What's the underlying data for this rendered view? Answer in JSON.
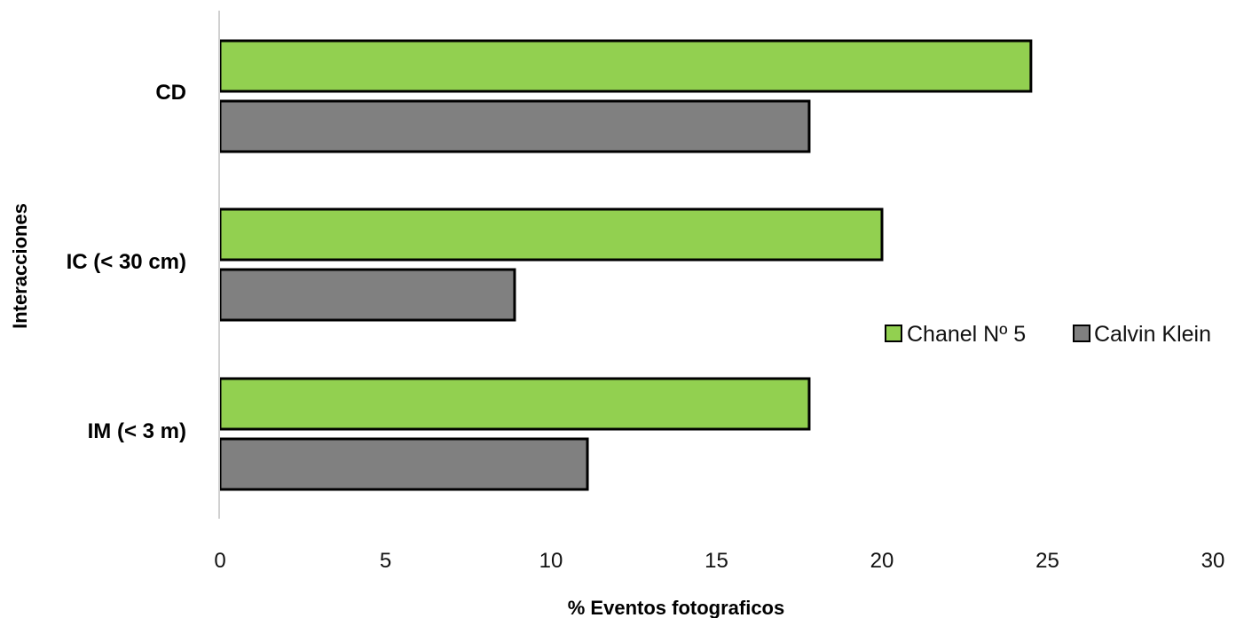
{
  "chart_data": {
    "type": "bar",
    "orientation": "horizontal",
    "categories": [
      "CD",
      "IC (< 30 cm)",
      "IM (< 3 m)"
    ],
    "series": [
      {
        "name": "Chanel Nº 5",
        "color": "#92d050",
        "values": [
          24.5,
          20,
          17.8
        ]
      },
      {
        "name": "Calvin Klein",
        "color": "#808080",
        "values": [
          17.8,
          8.9,
          11.1
        ]
      }
    ],
    "xlabel": "% Eventos fotograficos",
    "ylabel": "Interacciones",
    "xlim": [
      0,
      30
    ],
    "xticks": [
      0,
      5,
      10,
      15,
      20,
      25,
      30
    ],
    "grid": false,
    "legend_position": "right"
  }
}
